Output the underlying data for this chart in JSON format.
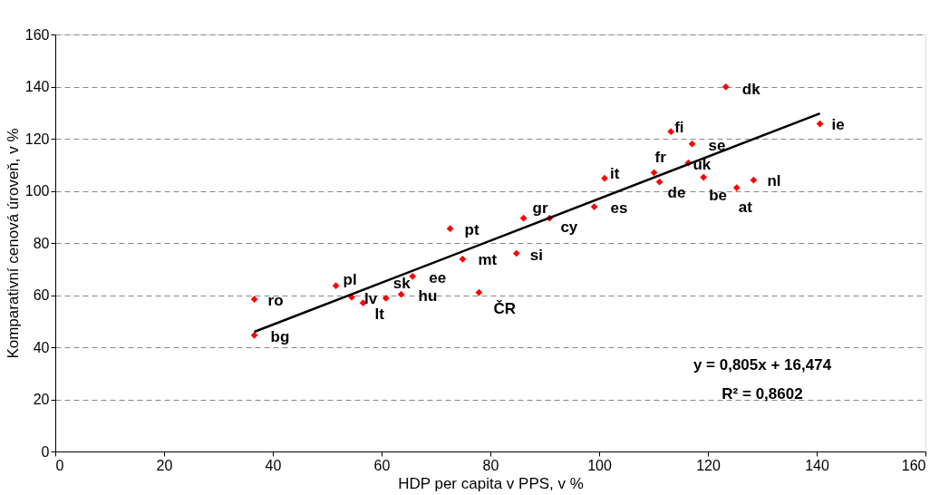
{
  "chart_data": {
    "type": "scatter",
    "xlabel": "HDP per capita v PPS, v %",
    "ylabel": "Komparativní cenová úroveň, v %",
    "xlim": [
      0,
      160
    ],
    "xticks": [
      0,
      20,
      40,
      60,
      80,
      100,
      120,
      140,
      160
    ],
    "ylim": [
      0,
      160
    ],
    "yticks": [
      0,
      20,
      40,
      60,
      80,
      100,
      120,
      140,
      160
    ],
    "grid": "y",
    "legend": false,
    "marker": "diamond",
    "series": [
      {
        "type": "scatter",
        "color": "#ff0000",
        "x": [
          36.6,
          36.6,
          51.6,
          54.5,
          56.6,
          60.8,
          63.6,
          65.7,
          77.9,
          74.9,
          72.6,
          84.8,
          86.1,
          90.9,
          99.1,
          101.0,
          110.1,
          111.1,
          113.2,
          117.1,
          116.4,
          119.2,
          125.3,
          128.4,
          123.3,
          140.6
        ],
        "values": [
          58.4,
          44.6,
          63.6,
          59.2,
          57.0,
          58.8,
          60.3,
          67.2,
          61.0,
          73.8,
          85.5,
          76.0,
          89.5,
          89.5,
          93.9,
          104.8,
          107.0,
          103.4,
          122.7,
          118.0,
          110.7,
          105.2,
          101.2,
          104.1,
          139.9,
          125.7
        ],
        "value_labels": [
          "ro",
          "bg",
          "pl",
          "lv",
          "lt",
          "sk",
          "hu",
          "ee",
          "ČR",
          "mt",
          "pt",
          "si",
          "gr",
          "cy",
          "es",
          "it",
          "fr",
          "de",
          "fi",
          "se",
          "uk",
          "be",
          "at",
          "nl",
          "dk",
          "ie"
        ]
      },
      {
        "type": "line",
        "color": "#000000",
        "marker": "none",
        "line_style": "solid",
        "x": [
          36.6,
          140.6
        ],
        "values": [
          45.9,
          129.7
        ]
      }
    ],
    "annotations": [
      "y = 0,805x + 16,474",
      "R² = 0,8602"
    ]
  }
}
